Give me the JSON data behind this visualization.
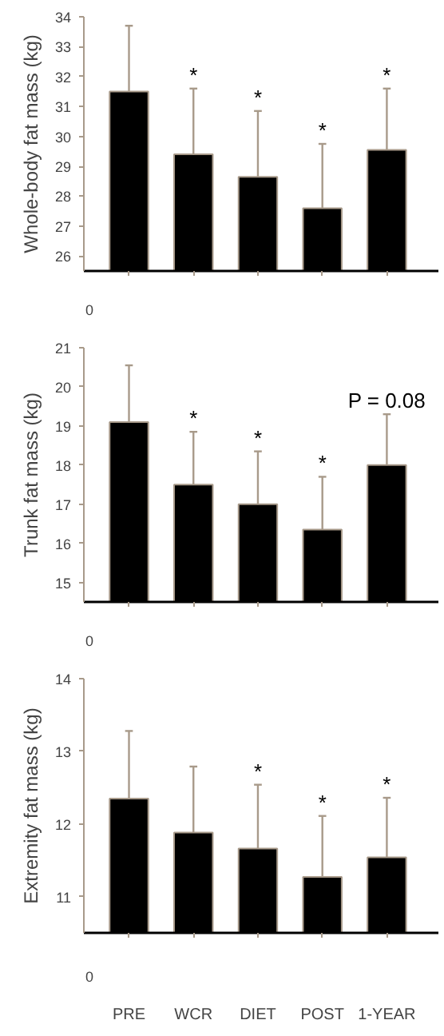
{
  "chart_data": [
    {
      "type": "bar",
      "categories": [
        "PRE",
        "WCR",
        "DIET",
        "POST",
        "1-YEAR"
      ],
      "ylabel": "Whole-body fat mass (kg)",
      "color": "#000000",
      "values": [
        31.5,
        29.4,
        28.65,
        27.6,
        29.55
      ],
      "errors": [
        [
          31.5,
          33.7
        ],
        [
          29.4,
          31.6
        ],
        [
          28.65,
          30.85
        ],
        [
          27.6,
          29.75
        ],
        [
          29.55,
          31.6
        ]
      ],
      "ylim": [
        25.5,
        34
      ],
      "yticks": [
        26,
        27,
        28,
        29,
        30,
        31,
        32,
        33,
        34
      ],
      "tick_labels": "y",
      "annotations": [
        {
          "text": "*",
          "x": "WCR",
          "y": 31.6
        },
        {
          "text": "*",
          "x": "DIET",
          "y": 30.85
        },
        {
          "text": "*",
          "x": "POST",
          "y": 29.75
        },
        {
          "text": "*",
          "x": "1-YEAR",
          "y": 31.6
        },
        "0"
      ]
    },
    {
      "type": "bar",
      "categories": [
        "PRE",
        "WCR",
        "DIET",
        "POST",
        "1-YEAR"
      ],
      "ylabel": "Trunk fat mass (kg)",
      "color": "#000000",
      "values": [
        19.1,
        17.5,
        17.0,
        16.35,
        18.0
      ],
      "errors": [
        [
          19.1,
          20.55
        ],
        [
          17.5,
          18.85
        ],
        [
          17.0,
          18.35
        ],
        [
          16.35,
          17.7
        ],
        [
          18.0,
          19.3
        ]
      ],
      "ylim": [
        14.5,
        21
      ],
      "yticks": [
        15,
        16,
        17,
        18,
        19,
        20,
        21
      ],
      "tick_labels": "y",
      "annotations": [
        {
          "text": "*",
          "x": "WCR",
          "y": 18.85
        },
        {
          "text": "*",
          "x": "DIET",
          "y": 18.35
        },
        {
          "text": "*",
          "x": "POST",
          "y": 17.7
        },
        {
          "text": "P = 0.08",
          "x": "1-YEAR",
          "y": 19.3
        },
        "0"
      ]
    },
    {
      "type": "bar",
      "categories": [
        "PRE",
        "WCR",
        "DIET",
        "POST",
        "1-YEAR"
      ],
      "ylabel": "Extremity fat mass (kg)",
      "color": "#000000",
      "values": [
        12.35,
        11.88,
        11.66,
        11.27,
        11.54
      ],
      "errors": [
        [
          12.35,
          13.28
        ],
        [
          11.88,
          12.79
        ],
        [
          11.66,
          12.54
        ],
        [
          11.27,
          12.11
        ],
        [
          11.54,
          12.36
        ]
      ],
      "ylim": [
        10.5,
        14
      ],
      "yticks": [
        11,
        12,
        13,
        14
      ],
      "annotations": [
        {
          "text": "*",
          "x": "DIET",
          "y": 12.54
        },
        {
          "text": "*",
          "x": "POST",
          "y": 12.11
        },
        {
          "text": "*",
          "x": "1-YEAR",
          "y": 12.36
        },
        "0"
      ]
    }
  ]
}
